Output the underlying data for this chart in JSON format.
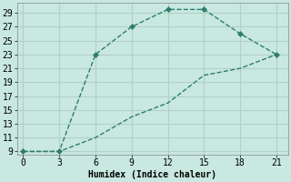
{
  "xlabel": "Humidex (Indice chaleur)",
  "bg_color": "#c8e8e0",
  "line_color": "#2e7d6e",
  "grid_color": "#b0d0c8",
  "line1_x": [
    0,
    3,
    6,
    9,
    12,
    15,
    18,
    21
  ],
  "line1_y": [
    9,
    9,
    23,
    27,
    29.5,
    29.5,
    26,
    23
  ],
  "line2_x": [
    0,
    3,
    6,
    9,
    12,
    15,
    18,
    21
  ],
  "line2_y": [
    9,
    9,
    11,
    14,
    16,
    20,
    21,
    23
  ],
  "xlim": [
    -0.5,
    22
  ],
  "ylim": [
    8.5,
    30.5
  ],
  "xticks": [
    0,
    3,
    6,
    9,
    12,
    15,
    18,
    21
  ],
  "yticks": [
    9,
    11,
    13,
    15,
    17,
    19,
    21,
    23,
    25,
    27,
    29
  ],
  "marker": "D",
  "marker_size": 3,
  "linewidth": 1.0,
  "font_size": 7
}
